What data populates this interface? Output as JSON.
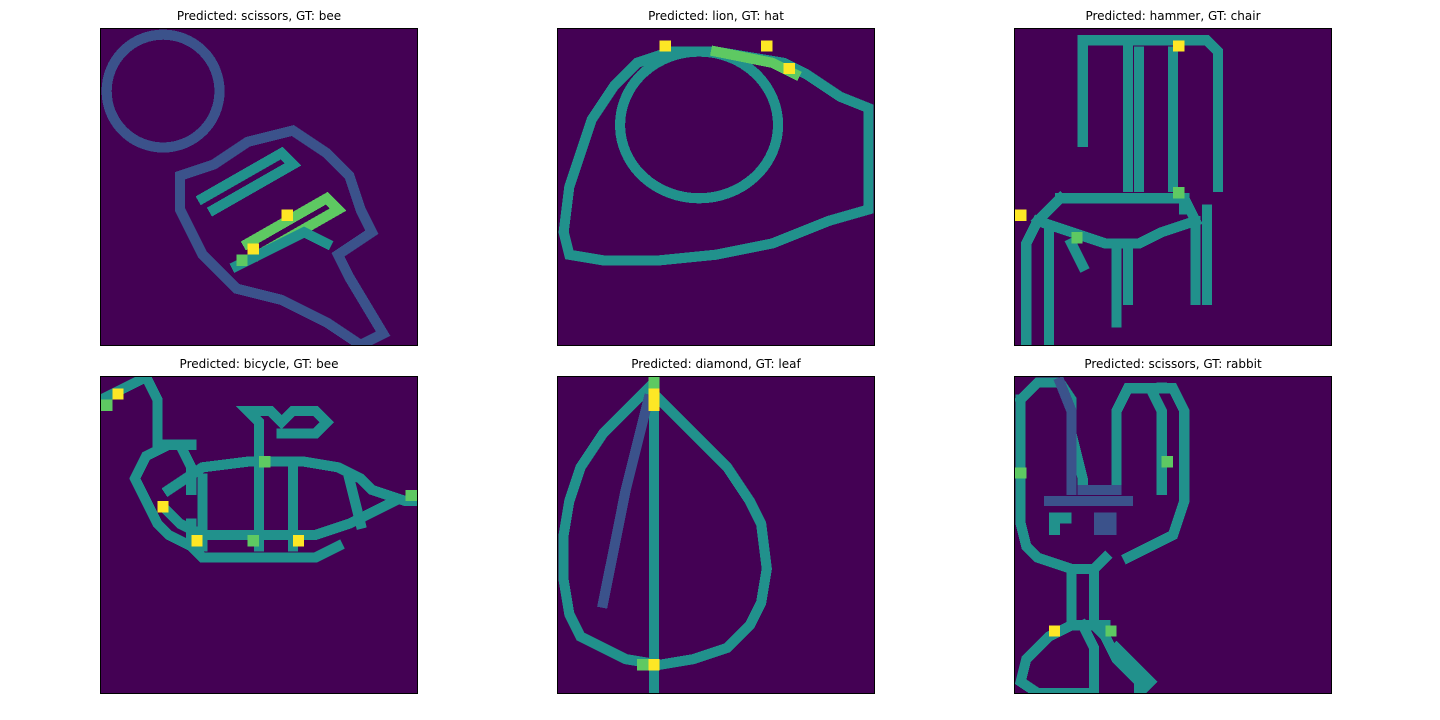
{
  "colors": {
    "background": "#440154",
    "low": "#3b528b",
    "mid": "#21918c",
    "high": "#5ec962",
    "peak": "#fde725"
  },
  "panels": [
    {
      "title": "Predicted: scissors, GT: bee",
      "depicts": "bee-icon"
    },
    {
      "title": "Predicted: lion, GT: hat",
      "depicts": "hat-icon"
    },
    {
      "title": "Predicted: hammer, GT: chair",
      "depicts": "chair-icon"
    },
    {
      "title": "Predicted: bicycle, GT: bee",
      "depicts": "bee-icon"
    },
    {
      "title": "Predicted: diamond, GT: leaf",
      "depicts": "leaf-icon"
    },
    {
      "title": "Predicted: scissors, GT: rabbit",
      "depicts": "rabbit-icon"
    }
  ]
}
